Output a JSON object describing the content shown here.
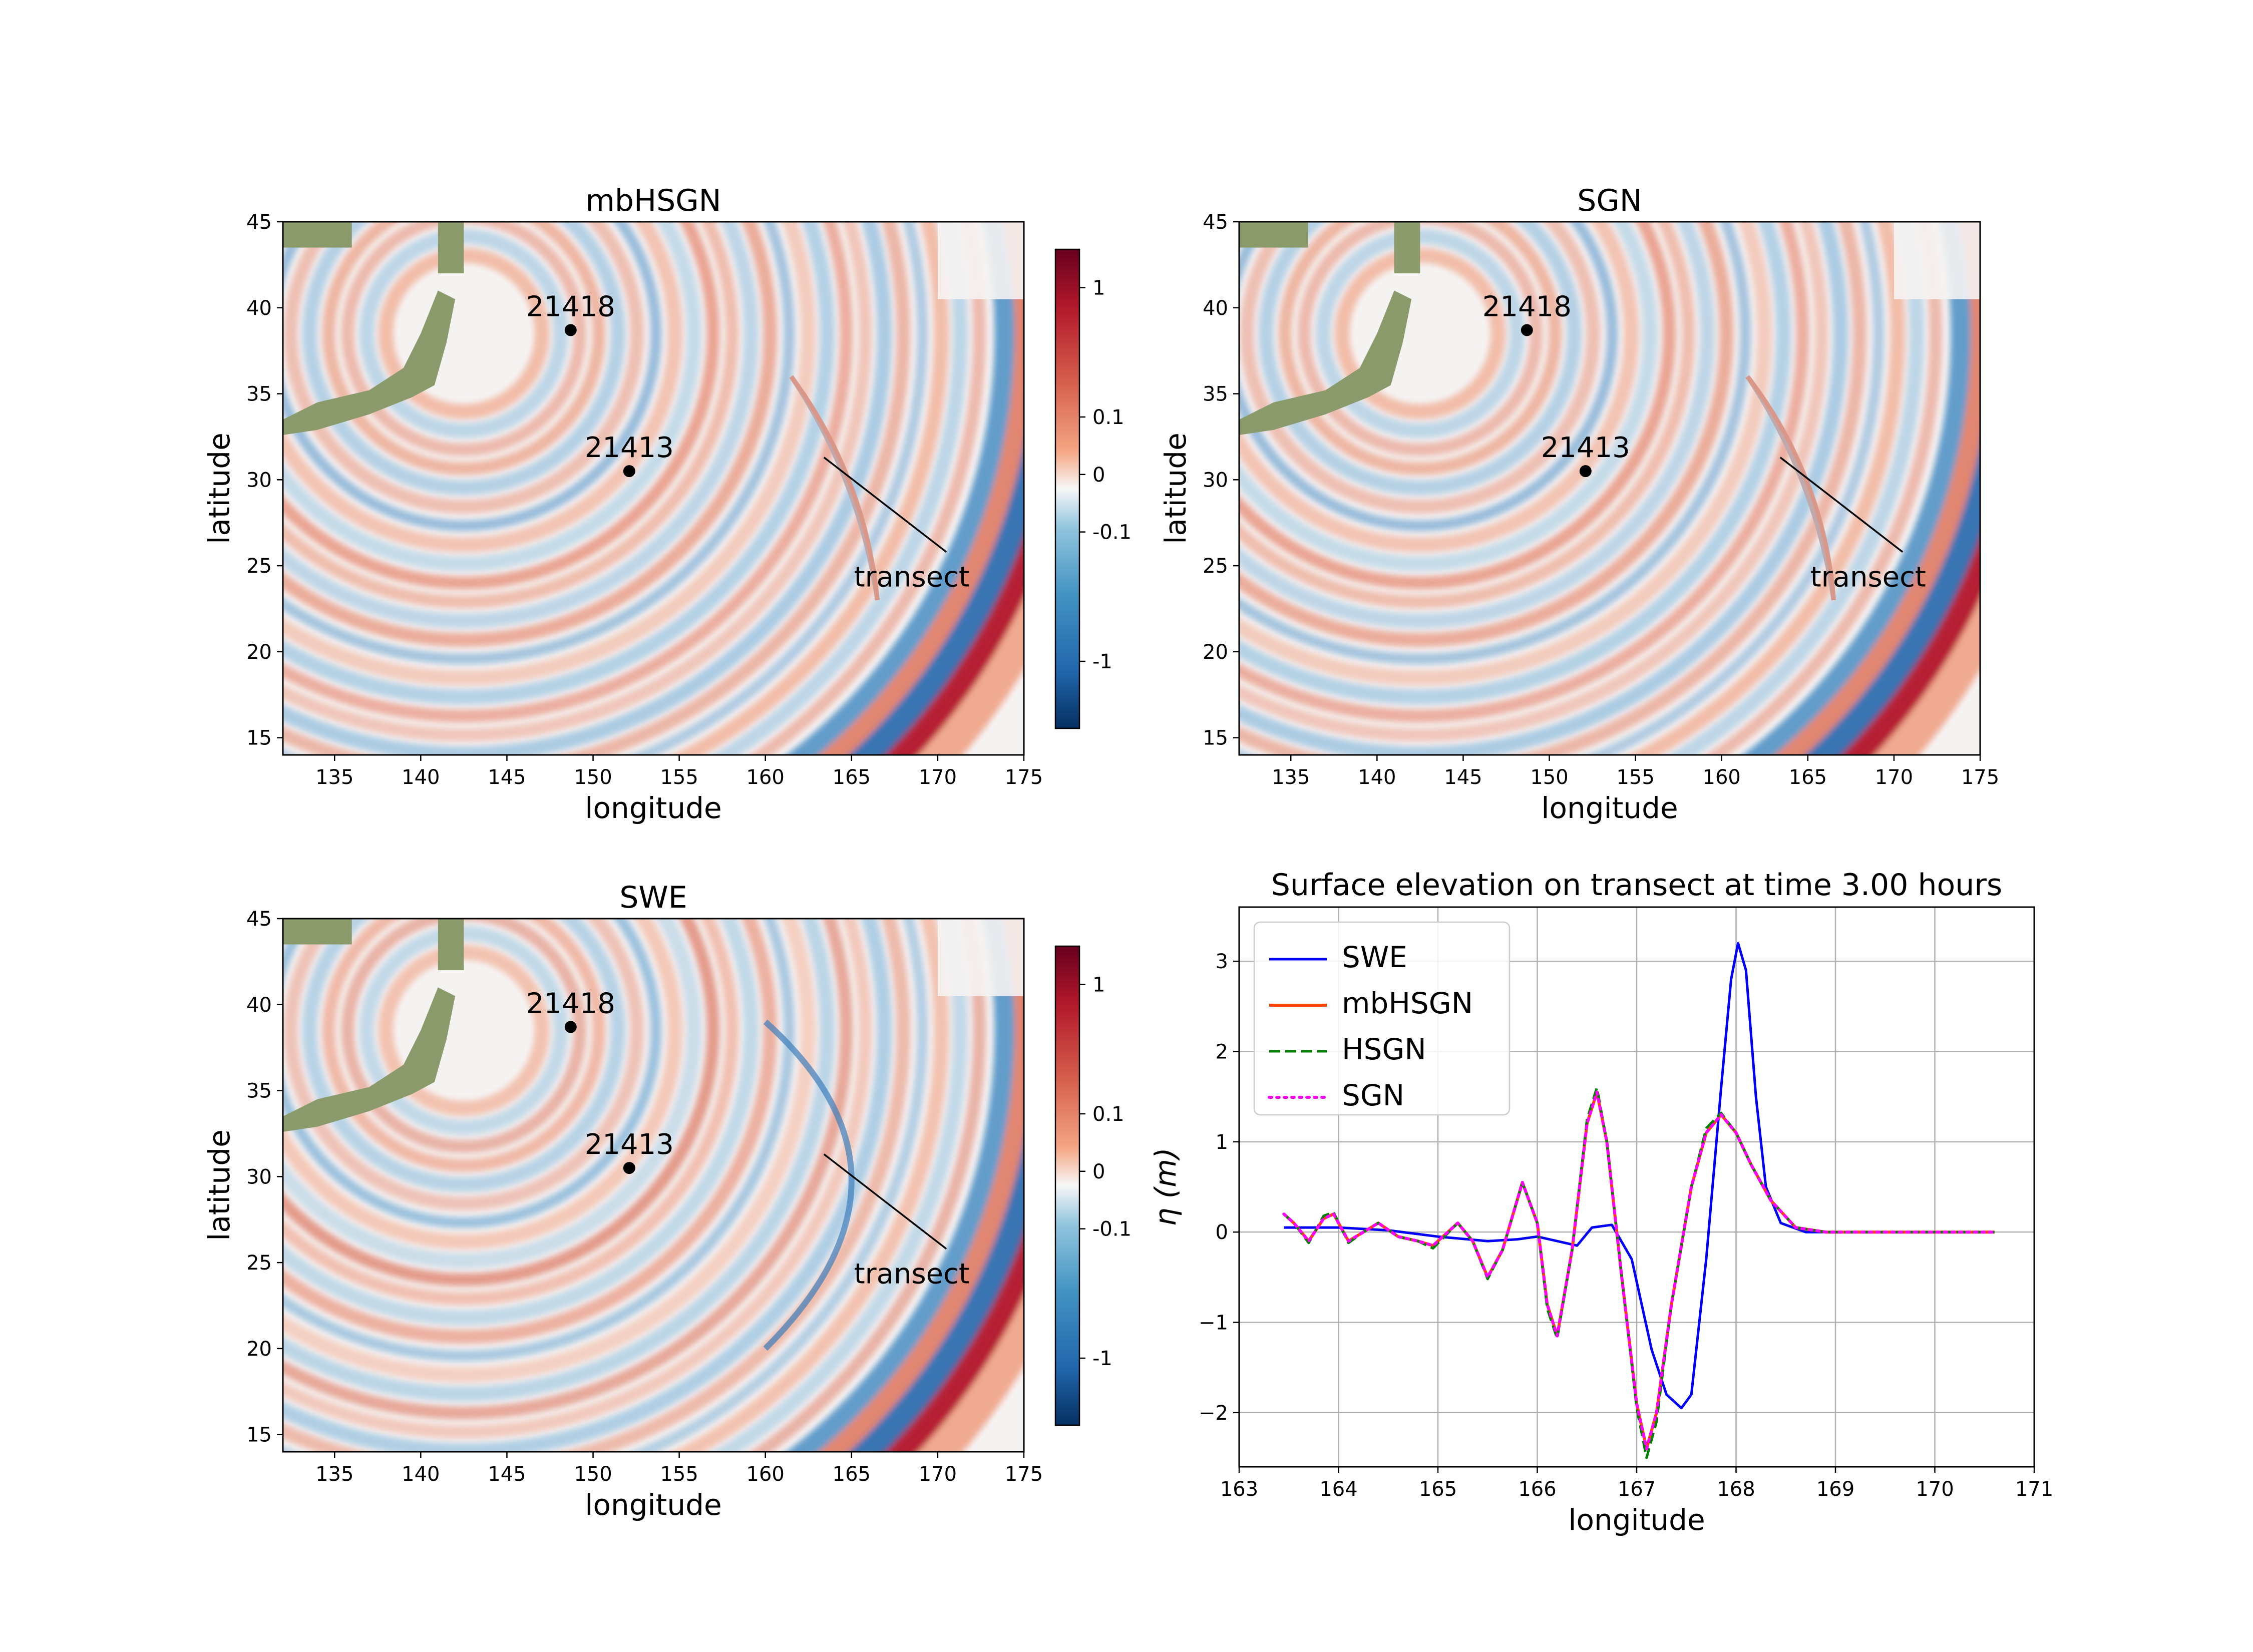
{
  "colors": {
    "swe": "#0000ff",
    "mbhsgn": "#ff4500",
    "hsgn": "#008000",
    "sgn": "#ff00ff",
    "land": "#8a9a6b",
    "dot": "#000000"
  },
  "maps": [
    {
      "id": "map-mbhsgn",
      "title": "mbHSGN",
      "xlabel": "longitude",
      "ylabel": "latitude",
      "xticks": [
        "135",
        "140",
        "145",
        "150",
        "155",
        "160",
        "165",
        "170",
        "175"
      ],
      "yticks": [
        "45",
        "40",
        "35",
        "30",
        "25",
        "20",
        "15"
      ],
      "stations": [
        {
          "label": "21418",
          "lon": 148.7,
          "lat": 38.7
        },
        {
          "label": "21413",
          "lon": 152.1,
          "lat": 30.5
        }
      ],
      "transect_label": "transect",
      "colorbar_ticks": [
        "1",
        "0.1",
        "0",
        "-0.1",
        "-1"
      ]
    },
    {
      "id": "map-sgn",
      "title": "SGN",
      "xlabel": "longitude",
      "ylabel": "latitude",
      "xticks": [
        "135",
        "140",
        "145",
        "150",
        "155",
        "160",
        "165",
        "170",
        "175"
      ],
      "yticks": [
        "45",
        "40",
        "35",
        "30",
        "25",
        "20",
        "15"
      ],
      "stations": [
        {
          "label": "21418",
          "lon": 148.7,
          "lat": 38.7
        },
        {
          "label": "21413",
          "lon": 152.1,
          "lat": 30.5
        }
      ],
      "transect_label": "transect",
      "colorbar_ticks": [
        "1",
        "0.1",
        "0",
        "-0.1",
        "-1"
      ]
    },
    {
      "id": "map-swe",
      "title": "SWE",
      "xlabel": "longitude",
      "ylabel": "latitude",
      "xticks": [
        "135",
        "140",
        "145",
        "150",
        "155",
        "160",
        "165",
        "170",
        "175"
      ],
      "yticks": [
        "45",
        "40",
        "35",
        "30",
        "25",
        "20",
        "15"
      ],
      "stations": [
        {
          "label": "21418",
          "lon": 148.7,
          "lat": 38.7
        },
        {
          "label": "21413",
          "lon": 152.1,
          "lat": 30.5
        }
      ],
      "transect_label": "transect",
      "colorbar_ticks": [
        "1",
        "0.1",
        "0",
        "-0.1",
        "-1"
      ]
    }
  ],
  "chart_data": {
    "type": "line",
    "title": "Surface elevation on transect at time 3.00 hours",
    "xlabel": "longitude",
    "ylabel": "η (m)",
    "xlim": [
      163,
      171
    ],
    "ylim": [
      -2.6,
      3.6
    ],
    "xticks": [
      163,
      164,
      165,
      166,
      167,
      168,
      169,
      170,
      171
    ],
    "yticks": [
      -2,
      -1,
      0,
      1,
      2,
      3
    ],
    "grid": true,
    "legend_position": "top-left",
    "series": [
      {
        "name": "SWE",
        "style": "solid",
        "points": [
          [
            163.45,
            0.05
          ],
          [
            164.0,
            0.05
          ],
          [
            164.5,
            0.02
          ],
          [
            165.0,
            -0.05
          ],
          [
            165.5,
            -0.1
          ],
          [
            165.8,
            -0.08
          ],
          [
            166.0,
            -0.05
          ],
          [
            166.2,
            -0.1
          ],
          [
            166.4,
            -0.15
          ],
          [
            166.55,
            0.05
          ],
          [
            166.75,
            0.08
          ],
          [
            166.95,
            -0.3
          ],
          [
            167.15,
            -1.3
          ],
          [
            167.3,
            -1.8
          ],
          [
            167.45,
            -1.95
          ],
          [
            167.55,
            -1.8
          ],
          [
            167.7,
            -0.3
          ],
          [
            167.85,
            1.6
          ],
          [
            167.95,
            2.8
          ],
          [
            168.02,
            3.2
          ],
          [
            168.1,
            2.9
          ],
          [
            168.2,
            1.5
          ],
          [
            168.3,
            0.5
          ],
          [
            168.45,
            0.1
          ],
          [
            168.7,
            0.0
          ],
          [
            169.5,
            0.0
          ],
          [
            170.6,
            0.0
          ]
        ]
      },
      {
        "name": "mbHSGN",
        "style": "solid",
        "points": [
          [
            163.45,
            0.2
          ],
          [
            163.55,
            0.1
          ],
          [
            163.7,
            -0.1
          ],
          [
            163.85,
            0.15
          ],
          [
            163.95,
            0.2
          ],
          [
            164.1,
            -0.1
          ],
          [
            164.25,
            0.0
          ],
          [
            164.4,
            0.1
          ],
          [
            164.6,
            -0.05
          ],
          [
            164.8,
            -0.1
          ],
          [
            164.95,
            -0.15
          ],
          [
            165.2,
            0.1
          ],
          [
            165.35,
            -0.1
          ],
          [
            165.5,
            -0.5
          ],
          [
            165.65,
            -0.2
          ],
          [
            165.85,
            0.55
          ],
          [
            166.0,
            0.1
          ],
          [
            166.1,
            -0.8
          ],
          [
            166.2,
            -1.15
          ],
          [
            166.35,
            -0.2
          ],
          [
            166.5,
            1.2
          ],
          [
            166.6,
            1.55
          ],
          [
            166.7,
            1.0
          ],
          [
            166.85,
            -0.5
          ],
          [
            167.0,
            -1.9
          ],
          [
            167.1,
            -2.4
          ],
          [
            167.2,
            -2.0
          ],
          [
            167.35,
            -0.8
          ],
          [
            167.55,
            0.5
          ],
          [
            167.7,
            1.1
          ],
          [
            167.85,
            1.3
          ],
          [
            168.0,
            1.1
          ],
          [
            168.15,
            0.75
          ],
          [
            168.35,
            0.35
          ],
          [
            168.6,
            0.05
          ],
          [
            168.9,
            0.0
          ],
          [
            169.5,
            0.0
          ],
          [
            170.6,
            0.0
          ]
        ]
      },
      {
        "name": "HSGN",
        "style": "dashed",
        "points": [
          [
            163.45,
            0.2
          ],
          [
            163.55,
            0.1
          ],
          [
            163.7,
            -0.12
          ],
          [
            163.85,
            0.18
          ],
          [
            163.95,
            0.22
          ],
          [
            164.1,
            -0.12
          ],
          [
            164.25,
            0.0
          ],
          [
            164.4,
            0.1
          ],
          [
            164.6,
            -0.05
          ],
          [
            164.8,
            -0.1
          ],
          [
            164.95,
            -0.18
          ],
          [
            165.2,
            0.1
          ],
          [
            165.35,
            -0.1
          ],
          [
            165.5,
            -0.52
          ],
          [
            165.65,
            -0.2
          ],
          [
            165.85,
            0.55
          ],
          [
            166.0,
            0.1
          ],
          [
            166.1,
            -0.85
          ],
          [
            166.2,
            -1.18
          ],
          [
            166.35,
            -0.2
          ],
          [
            166.5,
            1.25
          ],
          [
            166.6,
            1.6
          ],
          [
            166.7,
            1.0
          ],
          [
            166.85,
            -0.5
          ],
          [
            167.0,
            -1.95
          ],
          [
            167.1,
            -2.5
          ],
          [
            167.2,
            -2.1
          ],
          [
            167.35,
            -0.8
          ],
          [
            167.55,
            0.5
          ],
          [
            167.7,
            1.15
          ],
          [
            167.85,
            1.32
          ],
          [
            168.0,
            1.1
          ],
          [
            168.15,
            0.75
          ],
          [
            168.35,
            0.35
          ],
          [
            168.6,
            0.05
          ],
          [
            168.9,
            0.0
          ],
          [
            169.5,
            0.0
          ],
          [
            170.6,
            0.0
          ]
        ]
      },
      {
        "name": "SGN",
        "style": "dotted",
        "points": [
          [
            163.45,
            0.2
          ],
          [
            163.55,
            0.1
          ],
          [
            163.7,
            -0.1
          ],
          [
            163.85,
            0.15
          ],
          [
            163.95,
            0.2
          ],
          [
            164.1,
            -0.1
          ],
          [
            164.25,
            0.0
          ],
          [
            164.4,
            0.1
          ],
          [
            164.6,
            -0.05
          ],
          [
            164.8,
            -0.1
          ],
          [
            164.95,
            -0.15
          ],
          [
            165.2,
            0.1
          ],
          [
            165.35,
            -0.1
          ],
          [
            165.5,
            -0.5
          ],
          [
            165.65,
            -0.2
          ],
          [
            165.85,
            0.55
          ],
          [
            166.0,
            0.1
          ],
          [
            166.1,
            -0.8
          ],
          [
            166.2,
            -1.15
          ],
          [
            166.35,
            -0.2
          ],
          [
            166.5,
            1.2
          ],
          [
            166.6,
            1.55
          ],
          [
            166.7,
            1.0
          ],
          [
            166.85,
            -0.5
          ],
          [
            167.0,
            -1.9
          ],
          [
            167.1,
            -2.4
          ],
          [
            167.2,
            -2.0
          ],
          [
            167.35,
            -0.8
          ],
          [
            167.55,
            0.5
          ],
          [
            167.7,
            1.1
          ],
          [
            167.85,
            1.3
          ],
          [
            168.0,
            1.1
          ],
          [
            168.15,
            0.75
          ],
          [
            168.35,
            0.35
          ],
          [
            168.6,
            0.05
          ],
          [
            168.9,
            0.0
          ],
          [
            169.5,
            0.0
          ],
          [
            170.6,
            0.0
          ]
        ]
      }
    ]
  }
}
